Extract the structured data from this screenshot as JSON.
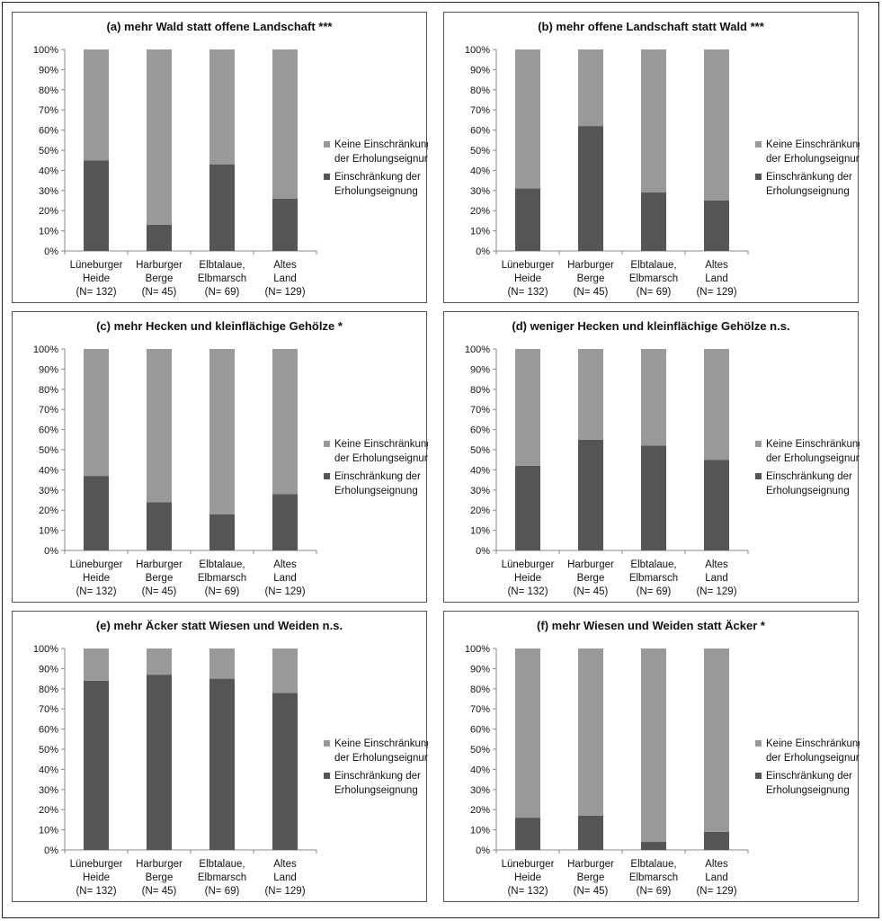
{
  "colors": {
    "keine": "#999999",
    "einschraenkung": "#555555",
    "axis": "#888888"
  },
  "chart_data": [
    {
      "type": "bar",
      "stacked": true,
      "title": "(a) mehr Wald statt offene Landschaft ***",
      "categories": [
        "Lüneburger Heide (N= 132)",
        "Harburger Berge (N= 45)",
        "Elbtalaue, Elbmarsch (N= 69)",
        "Altes Land (N= 129)"
      ],
      "series": [
        {
          "name": "Keine Einschränkung der Erholungseignung",
          "values": [
            55,
            87,
            57,
            74
          ]
        },
        {
          "name": "Einschränkung der Erholungseignung",
          "values": [
            45,
            13,
            43,
            26
          ]
        }
      ],
      "ylim": [
        0,
        100
      ],
      "legend": "right"
    },
    {
      "type": "bar",
      "stacked": true,
      "title": "(b) mehr offene Landschaft statt Wald ***",
      "categories": [
        "Lüneburger Heide (N= 132)",
        "Harburger Berge (N= 45)",
        "Elbtalaue, Elbmarsch (N= 69)",
        "Altes Land (N= 129)"
      ],
      "series": [
        {
          "name": "Keine Einschränkung der Erholungseignung",
          "values": [
            69,
            38,
            71,
            75
          ]
        },
        {
          "name": "Einschränkung der Erholungseignung",
          "values": [
            31,
            62,
            29,
            25
          ]
        }
      ],
      "ylim": [
        0,
        100
      ],
      "legend": "right"
    },
    {
      "type": "bar",
      "stacked": true,
      "title": "(c) mehr Hecken und kleinflächige Gehölze *",
      "categories": [
        "Lüneburger Heide (N= 132)",
        "Harburger Berge (N= 45)",
        "Elbtalaue, Elbmarsch (N= 69)",
        "Altes Land (N= 129)"
      ],
      "series": [
        {
          "name": "Keine Einschränkung der Erholungseignung",
          "values": [
            63,
            76,
            82,
            72
          ]
        },
        {
          "name": "Einschränkung der Erholungseignung",
          "values": [
            37,
            24,
            18,
            28
          ]
        }
      ],
      "ylim": [
        0,
        100
      ],
      "legend": "right"
    },
    {
      "type": "bar",
      "stacked": true,
      "title": "(d) weniger Hecken und kleinflächige Gehölze   n.s.",
      "categories": [
        "Lüneburger Heide (N= 132)",
        "Harburger Berge (N= 45)",
        "Elbtalaue, Elbmarsch (N= 69)",
        "Altes Land (N= 129)"
      ],
      "series": [
        {
          "name": "Keine Einschränkung der Erholungseignung",
          "values": [
            58,
            45,
            48,
            55
          ]
        },
        {
          "name": "Einschränkung der Erholungseignung",
          "values": [
            42,
            55,
            52,
            45
          ]
        }
      ],
      "ylim": [
        0,
        100
      ],
      "legend": "right"
    },
    {
      "type": "bar",
      "stacked": true,
      "title": "(e) mehr Äcker statt Wiesen und Weiden   n.s.",
      "categories": [
        "Lüneburger Heide (N= 132)",
        "Harburger Berge (N= 45)",
        "Elbtalaue, Elbmarsch (N= 69)",
        "Altes Land (N= 129)"
      ],
      "series": [
        {
          "name": "Keine Einschränkung der Erholungseignung",
          "values": [
            16,
            13,
            15,
            22
          ]
        },
        {
          "name": "Einschränkung der Erholungseignung",
          "values": [
            84,
            87,
            85,
            78
          ]
        }
      ],
      "ylim": [
        0,
        100
      ],
      "legend": "right"
    },
    {
      "type": "bar",
      "stacked": true,
      "title": "(f) mehr Wiesen und Weiden statt Äcker *",
      "categories": [
        "Lüneburger Heide (N= 132)",
        "Harburger Berge (N= 45)",
        "Elbtalaue, Elbmarsch (N= 69)",
        "Altes Land (N= 129)"
      ],
      "series": [
        {
          "name": "Keine Einschränkung der Erholungseignung",
          "values": [
            84,
            83,
            96,
            91
          ]
        },
        {
          "name": "Einschränkung der Erholungseignung",
          "values": [
            16,
            17,
            4,
            9
          ]
        }
      ],
      "ylim": [
        0,
        100
      ],
      "legend": "right"
    }
  ],
  "axis": {
    "y_ticks": [
      "0%",
      "10%",
      "20%",
      "30%",
      "40%",
      "50%",
      "60%",
      "70%",
      "80%",
      "90%",
      "100%"
    ],
    "category_lines": [
      [
        "Lüneburger",
        "Heide",
        "(N= 132)"
      ],
      [
        "Harburger",
        "Berge",
        "(N= 45)"
      ],
      [
        "Elbtalaue,",
        "Elbmarsch",
        "(N= 69)"
      ],
      [
        "Altes",
        "Land",
        "(N= 129)"
      ]
    ]
  },
  "legend": {
    "keine": [
      "Keine Einschränkung",
      "der Erholungseignung"
    ],
    "einschraenkung": [
      "Einschränkung der",
      "Erholungseignung"
    ]
  }
}
